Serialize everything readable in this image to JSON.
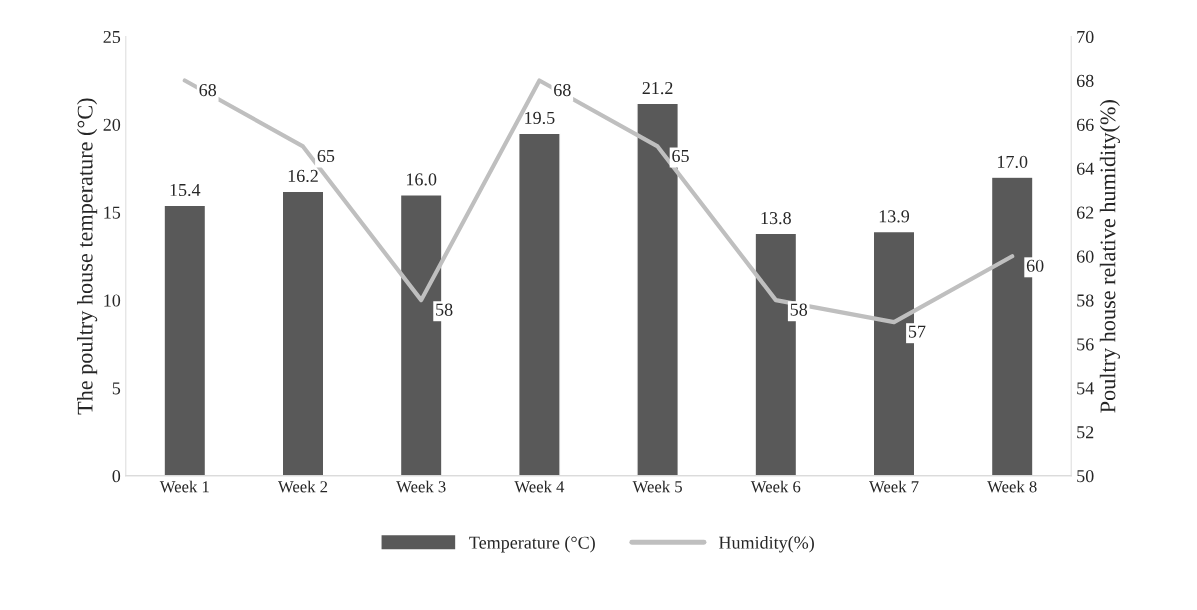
{
  "chart_data": {
    "type": "bar",
    "ylabel": "The poultry house temperature (°C)",
    "y2label": "Poultry house relative humidity(%)",
    "categories": [
      "Week 1",
      "Week 2",
      "Week 3",
      "Week 4",
      "Week 5",
      "Week 6",
      "Week 7",
      "Week 8"
    ],
    "series": [
      {
        "name": "Temperature (°C)",
        "color": "#595959",
        "values": [
          15.4,
          16.2,
          16.0,
          19.5,
          21.2,
          13.8,
          13.9,
          17.0
        ],
        "value_labels": [
          "15.4",
          "16.2",
          "16.0",
          "19.5",
          "21.2",
          "13.8",
          "13.9",
          "17.0"
        ]
      },
      {
        "name": "Humidity(%)",
        "type": "line",
        "axis": "y2",
        "color": "#bfbfbf",
        "values": [
          68,
          65,
          58,
          68,
          65,
          58,
          57,
          60
        ],
        "value_labels": [
          "68",
          "65",
          "58",
          "68",
          "65",
          "58",
          "57",
          "60"
        ]
      }
    ],
    "ylim": [
      0,
      25
    ],
    "yticks": [
      0,
      5,
      10,
      15,
      20,
      25
    ],
    "y2lim": [
      50,
      70
    ],
    "y2ticks": [
      50,
      52,
      54,
      56,
      58,
      60,
      62,
      64,
      66,
      68,
      70
    ],
    "legend": "bottom",
    "grid": false,
    "marker": "none",
    "line_style": "solid"
  }
}
